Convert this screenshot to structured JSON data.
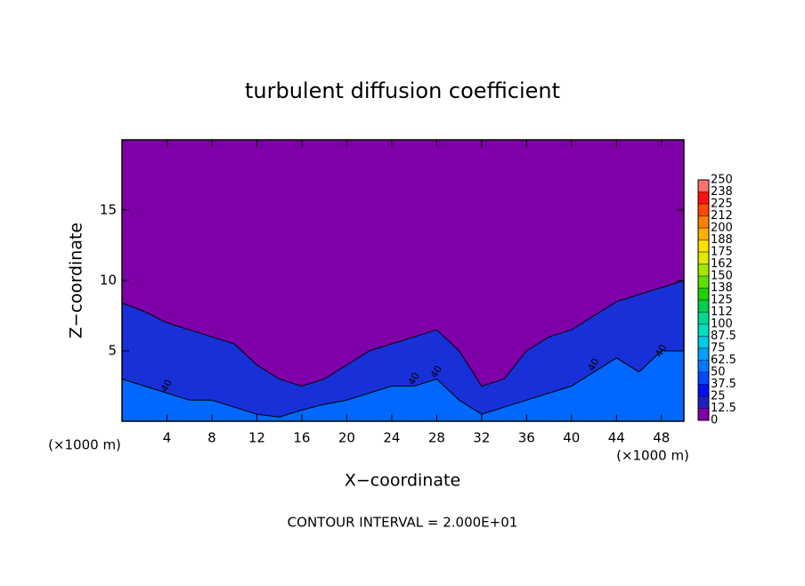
{
  "chart_data": {
    "type": "contour",
    "title": "turbulent diffusion coefficient",
    "xlabel": "X−coordinate",
    "ylabel": "Z−coordinate",
    "x_unit": "(×1000 m)",
    "footer": "CONTOUR INTERVAL = 2.000E+01",
    "xlim": [
      0,
      50
    ],
    "ylim": [
      0,
      20
    ],
    "xticks": [
      4,
      8,
      12,
      16,
      20,
      24,
      28,
      32,
      36,
      40,
      44,
      48
    ],
    "yticks": [
      5,
      10,
      15
    ],
    "background_color": "#7f00a8",
    "layers": [
      {
        "color": "#1830d8",
        "x": [
          0,
          2,
          4,
          6,
          8,
          10,
          12,
          14,
          16,
          18,
          20,
          22,
          24,
          26,
          28,
          30,
          32,
          34,
          36,
          38,
          40,
          42,
          44,
          46,
          48,
          50
        ],
        "z": [
          8.4,
          7.8,
          7,
          6.5,
          6,
          5.5,
          4,
          3,
          2.5,
          3,
          4,
          5,
          5.5,
          6,
          6.5,
          5,
          2.5,
          3,
          5,
          6,
          6.5,
          7.5,
          8.5,
          9,
          9.5,
          10
        ]
      },
      {
        "color": "#0068ff",
        "x": [
          0,
          2,
          4,
          6,
          8,
          10,
          12,
          14,
          16,
          18,
          20,
          22,
          24,
          26,
          28,
          30,
          32,
          34,
          36,
          38,
          40,
          42,
          44,
          46,
          48,
          50
        ],
        "z": [
          3,
          2.5,
          2,
          1.5,
          1.5,
          1,
          0.5,
          0.3,
          0.8,
          1.2,
          1.5,
          2,
          2.5,
          2.5,
          3,
          1.5,
          0.5,
          1,
          1.5,
          2,
          2.5,
          3.5,
          4.5,
          3.5,
          5,
          5
        ]
      }
    ],
    "contour_labels": [
      "40",
      "40",
      "40",
      "40",
      "40"
    ],
    "colorbar": {
      "levels": [
        0,
        12.5,
        25,
        37.5,
        50,
        62.5,
        75,
        87.5,
        100,
        {
          "value": 112.5,
          "label": "112"
        },
        125,
        {
          "value": 137.5,
          "label": "138"
        },
        150,
        {
          "value": 162.5,
          "label": "162"
        },
        175,
        {
          "value": 187.5,
          "label": "188"
        },
        200,
        {
          "value": 212.5,
          "label": "212"
        },
        225,
        {
          "value": 237.5,
          "label": "238"
        },
        250
      ],
      "colors": [
        "#7f00a8",
        "#2020c0",
        "#0010f0",
        "#0048ff",
        "#0078ff",
        "#00a0ff",
        "#00c8e8",
        "#00e0c0",
        "#00d890",
        "#00d050",
        "#20d000",
        "#60e000",
        "#a0e800",
        "#e0e800",
        "#ffe000",
        "#ffb000",
        "#ff8000",
        "#ff4800",
        "#ff1010",
        "#ff7070"
      ]
    }
  }
}
